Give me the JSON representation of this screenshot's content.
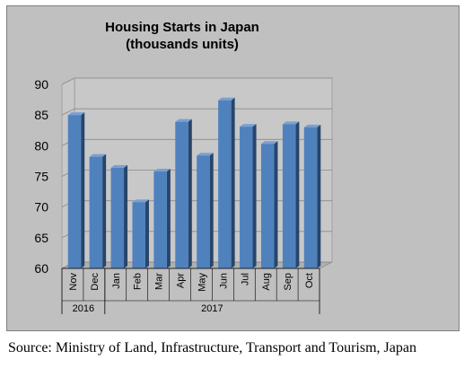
{
  "chart_data": {
    "type": "bar",
    "title_lines": [
      "Housing Starts in Japan",
      "(thousands units)"
    ],
    "categories": [
      "Nov",
      "Dec",
      "Jan",
      "Feb",
      "Mar",
      "Apr",
      "May",
      "Jun",
      "Jul",
      "Aug",
      "Sep",
      "Oct"
    ],
    "year_groups": [
      {
        "label": "2016",
        "count": 2
      },
      {
        "label": "2017",
        "count": 10
      }
    ],
    "series": [
      {
        "values": [
          85.0,
          78.2,
          76.4,
          70.8,
          75.8,
          83.9,
          78.4,
          87.4,
          83.1,
          80.3,
          83.5,
          83.0
        ]
      }
    ],
    "ylim": [
      60,
      90
    ],
    "yticks": [
      60,
      65,
      70,
      75,
      80,
      85,
      90
    ],
    "grid": true,
    "legend": "none",
    "style": "3d-column"
  },
  "source_note": "Source: Ministry of Land, Infrastructure, Transport and Tourism, Japan",
  "colors": {
    "panel_background": "#c0c0c0",
    "plot_wall": "#c8c8c8",
    "bar_front": "#4f81bd",
    "bar_side": "#27456b",
    "bar_top": "#7aa0d0",
    "gridline": "#8a8a8a",
    "floor": "#b0b0b0",
    "text": "#000000"
  }
}
